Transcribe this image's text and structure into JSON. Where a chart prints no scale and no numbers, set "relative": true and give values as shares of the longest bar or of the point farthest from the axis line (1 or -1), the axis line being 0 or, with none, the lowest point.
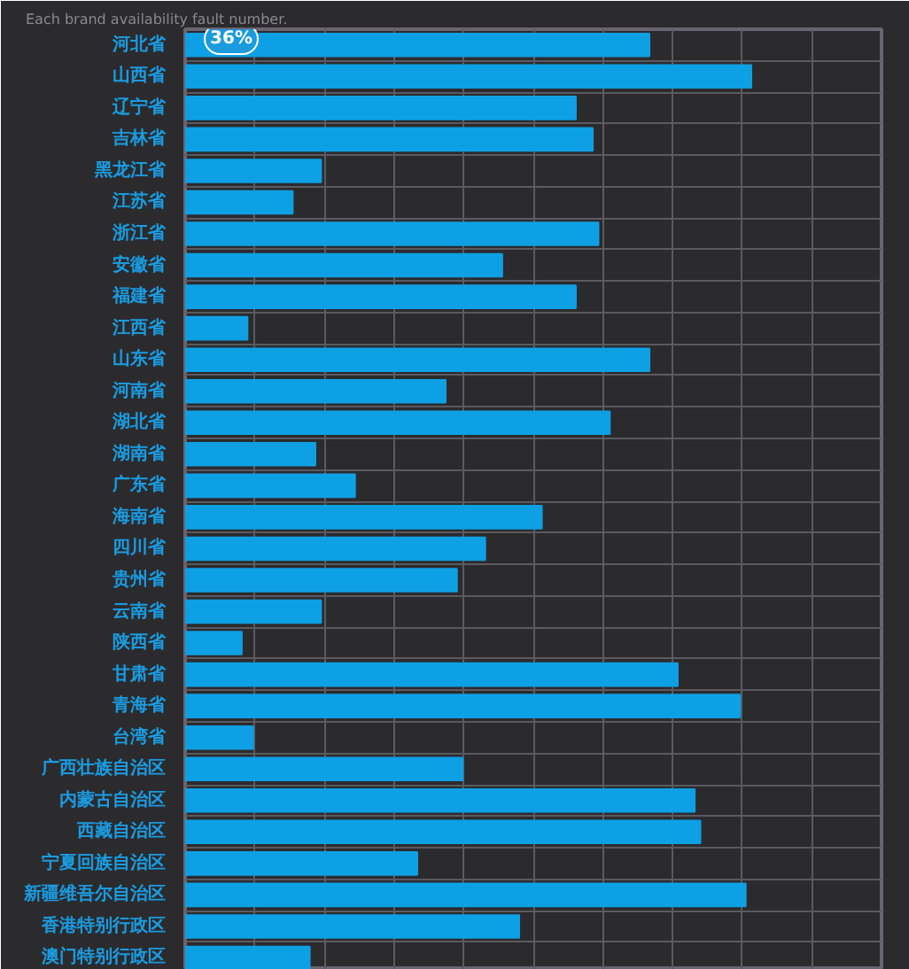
{
  "chart_data": {
    "type": "bar",
    "orientation": "horizontal",
    "relative": true,
    "title": "Each brand availability fault number.",
    "annotations": [
      "36%"
    ],
    "color": "#0ea0e4",
    "grid": true,
    "tick_labels": "y",
    "categories": [
      "河北省",
      "山西省",
      "辽宁省",
      "吉林省",
      "黑龙江省",
      "江苏省",
      "浙江省",
      "安徽省",
      "福建省",
      "江西省",
      "山东省",
      "河南省",
      "湖北省",
      "湖南省",
      "广东省",
      "海南省",
      "四川省",
      "贵州省",
      "云南省",
      "陕西省",
      "甘肃省",
      "青海省",
      "台湾省",
      "广西壮族自治区",
      "内蒙古自治区",
      "西藏自治区",
      "宁夏回族自治区",
      "新疆维吾尔自治区",
      "香港特别行政区",
      "澳门特别行政区"
    ],
    "values": [
      0.82,
      1,
      0.69,
      0.72,
      0.24,
      0.19,
      0.73,
      0.56,
      0.69,
      0.11,
      0.82,
      0.46,
      0.75,
      0.23,
      0.3,
      0.63,
      0.53,
      0.48,
      0.24,
      0.1,
      0.87,
      0.98,
      0.12,
      0.49,
      0.9,
      0.91,
      0.41,
      0.99,
      0.59,
      0.22
    ]
  }
}
